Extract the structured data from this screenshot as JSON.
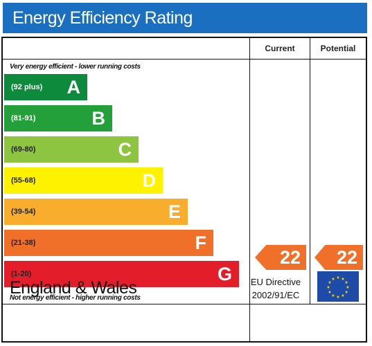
{
  "header": {
    "title": "Energy Efficiency Rating"
  },
  "columns": {
    "current": "Current",
    "potential": "Potential"
  },
  "notes": {
    "top": "Very energy efficient - lower running costs",
    "bottom": "Not energy efficient - higher running costs"
  },
  "bands": [
    {
      "range": "(92 plus)",
      "letter": "A",
      "color": "#0e8a3c",
      "range_color": "#ffffff"
    },
    {
      "range": "(81-91)",
      "letter": "B",
      "color": "#24a03a",
      "range_color": "#ffffff"
    },
    {
      "range": "(69-80)",
      "letter": "C",
      "color": "#8dc540",
      "range_color": "#222222"
    },
    {
      "range": "(55-68)",
      "letter": "D",
      "color": "#fef200",
      "range_color": "#222222"
    },
    {
      "range": "(39-54)",
      "letter": "E",
      "color": "#f8ad2c",
      "range_color": "#222222"
    },
    {
      "range": "(21-38)",
      "letter": "F",
      "color": "#f0702a",
      "range_color": "#222222"
    },
    {
      "range": "(1-20)",
      "letter": "G",
      "color": "#e31d2a",
      "range_color": "#222222"
    }
  ],
  "current": {
    "value": "22",
    "color": "#f0702a"
  },
  "potential": {
    "value": "22",
    "color": "#f0702a"
  },
  "footer": {
    "region": "England & Wales",
    "directive_line1": "EU Directive",
    "directive_line2": "2002/91/EC",
    "flag_icon": "eu-flag-icon"
  }
}
